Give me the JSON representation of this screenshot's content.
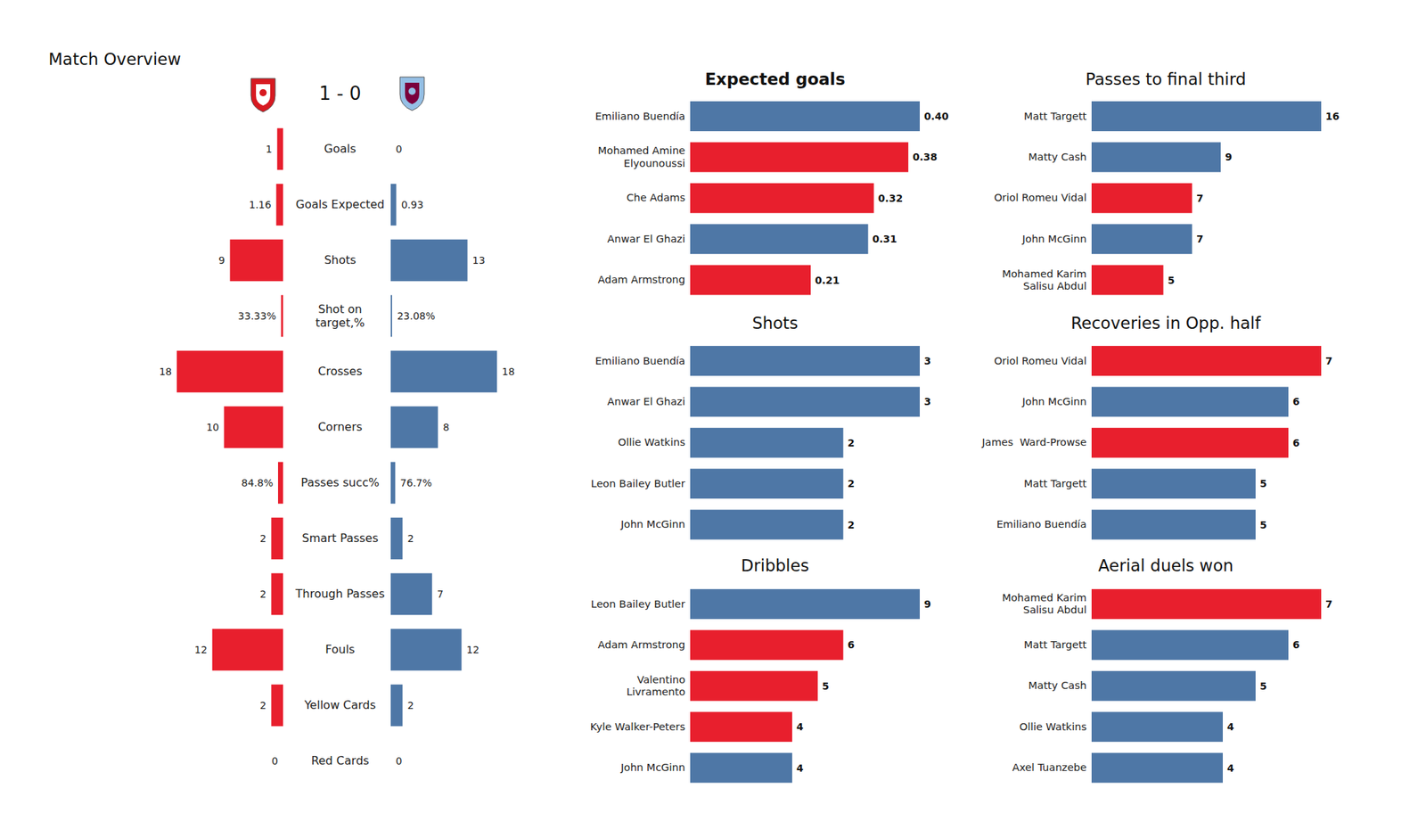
{
  "chart_data": [
    {
      "type": "butterfly",
      "title": "Match Overview",
      "subtitle": "1 - 0",
      "categories": [
        "Goals",
        "Goals Expected",
        "Shots",
        "Shot on target,%",
        "Crosses",
        "Corners",
        "Passes succ%",
        "Smart Passes",
        "Through Passes",
        "Fouls",
        "Yellow Cards",
        "Red Cards"
      ],
      "series": [
        {
          "color": "#e81f2d",
          "values": [
            1,
            1.16,
            9,
            0.3333,
            18,
            10,
            0.848,
            2,
            2,
            12,
            2,
            0
          ],
          "value_labels": [
            "1",
            "1.16",
            "9",
            "33.33%",
            "18",
            "10",
            "84.8%",
            "2",
            "2",
            "12",
            "2",
            "0"
          ]
        },
        {
          "color": "#4e77a6",
          "values": [
            0,
            0.93,
            13,
            0.2308,
            18,
            8,
            0.767,
            2,
            7,
            12,
            2,
            0
          ],
          "value_labels": [
            "0",
            "0.93",
            "13",
            "23.08%",
            "18",
            "8",
            "76.7%",
            "2",
            "7",
            "12",
            "2",
            "0"
          ]
        }
      ],
      "xlim": [
        0,
        18
      ],
      "data_labels": true,
      "tick_labels": "y"
    },
    {
      "type": "bar",
      "orientation": "horizontal",
      "title": "Expected goals",
      "categories": [
        "Emiliano Buendía",
        "Mohamed Amine Elyounoussi",
        "Che Adams",
        "Anwar El Ghazi",
        "Adam Armstrong"
      ],
      "values": [
        0.4,
        0.38,
        0.32,
        0.31,
        0.21
      ],
      "value_labels": [
        "0.40",
        "0.38",
        "0.32",
        "0.31",
        "0.21"
      ],
      "colors": [
        "#4e77a6",
        "#e81f2d",
        "#e81f2d",
        "#4e77a6",
        "#e81f2d"
      ],
      "xlim": [
        0,
        0.4
      ],
      "data_labels": true,
      "tick_labels": "y"
    },
    {
      "type": "bar",
      "orientation": "horizontal",
      "title": "Passes to final third",
      "categories": [
        "Matt Targett",
        "Matty Cash",
        "Oriol Romeu Vidal",
        "John McGinn",
        "Mohamed Karim Salisu Abdul"
      ],
      "values": [
        16,
        9,
        7,
        7,
        5
      ],
      "colors": [
        "#4e77a6",
        "#4e77a6",
        "#e81f2d",
        "#4e77a6",
        "#e81f2d"
      ],
      "xlim": [
        0,
        16
      ],
      "data_labels": true,
      "tick_labels": "y"
    },
    {
      "type": "bar",
      "orientation": "horizontal",
      "title": "Shots",
      "categories": [
        "Emiliano Buendía",
        "Anwar El Ghazi",
        "Ollie Watkins",
        "Leon Bailey Butler",
        "John McGinn"
      ],
      "values": [
        3,
        3,
        2,
        2,
        2
      ],
      "colors": [
        "#4e77a6",
        "#4e77a6",
        "#4e77a6",
        "#4e77a6",
        "#4e77a6"
      ],
      "xlim": [
        0,
        3
      ],
      "data_labels": true,
      "tick_labels": "y"
    },
    {
      "type": "bar",
      "orientation": "horizontal",
      "title": "Recoveries in Opp. half",
      "categories": [
        "Oriol Romeu Vidal",
        "John McGinn",
        "James  Ward-Prowse",
        "Matt Targett",
        "Emiliano Buendía"
      ],
      "values": [
        7,
        6,
        6,
        5,
        5
      ],
      "colors": [
        "#e81f2d",
        "#4e77a6",
        "#e81f2d",
        "#4e77a6",
        "#4e77a6"
      ],
      "xlim": [
        0,
        7
      ],
      "data_labels": true,
      "tick_labels": "y"
    },
    {
      "type": "bar",
      "orientation": "horizontal",
      "title": "Dribbles",
      "categories": [
        "Leon Bailey Butler",
        "Adam Armstrong",
        "Valentino Livramento",
        "Kyle Walker-Peters",
        "John McGinn"
      ],
      "values": [
        9,
        6,
        5,
        4,
        4
      ],
      "colors": [
        "#4e77a6",
        "#e81f2d",
        "#e81f2d",
        "#e81f2d",
        "#4e77a6"
      ],
      "xlim": [
        0,
        9
      ],
      "data_labels": true,
      "tick_labels": "y"
    },
    {
      "type": "bar",
      "orientation": "horizontal",
      "title": "Aerial duels won",
      "categories": [
        "Mohamed Karim Salisu Abdul",
        "Matt Targett",
        "Matty Cash",
        "Ollie Watkins",
        "Axel Tuanzebe"
      ],
      "values": [
        7,
        6,
        5,
        4,
        4
      ],
      "colors": [
        "#e81f2d",
        "#4e77a6",
        "#4e77a6",
        "#4e77a6",
        "#4e77a6"
      ],
      "xlim": [
        0,
        7
      ],
      "data_labels": true,
      "tick_labels": "y"
    }
  ]
}
